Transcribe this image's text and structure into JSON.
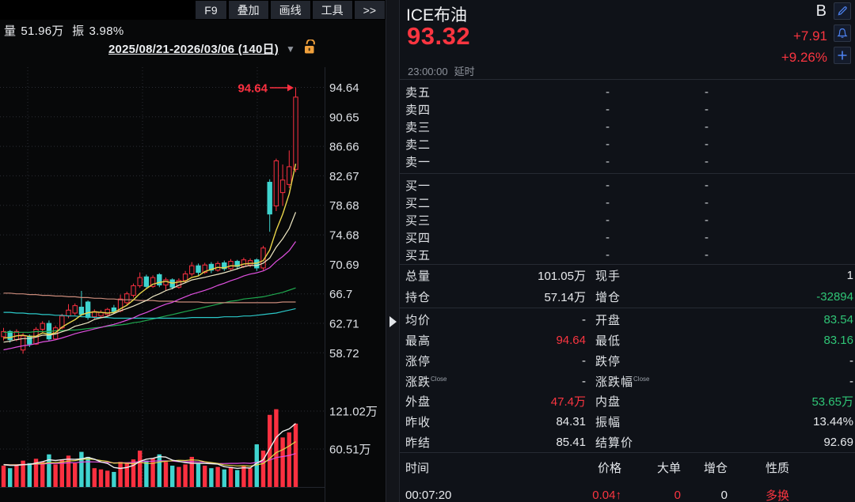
{
  "toolbar": {
    "items": [
      "F9",
      "叠加",
      "画线",
      "工具",
      ">>"
    ]
  },
  "chart_header": {
    "volume_label": "量",
    "volume_value": "51.96万",
    "amplitude_label": "振",
    "amplitude_value": "3.98%",
    "date_range": "2025/08/21-2026/03/06 (140日)",
    "caret": "▼"
  },
  "quote": {
    "name": "ICE布油",
    "code": "B",
    "price": "93.32",
    "change": "+7.91",
    "change_pct": "+9.26%",
    "time": "23:00:00",
    "delay_label": "延时"
  },
  "order_book": {
    "sell_rows": [
      {
        "label": "卖五",
        "v1": "-",
        "v2": "-"
      },
      {
        "label": "卖四",
        "v1": "-",
        "v2": "-"
      },
      {
        "label": "卖三",
        "v1": "-",
        "v2": "-"
      },
      {
        "label": "卖二",
        "v1": "-",
        "v2": "-"
      },
      {
        "label": "卖一",
        "v1": "-",
        "v2": "-"
      }
    ],
    "buy_rows": [
      {
        "label": "买一",
        "v1": "-",
        "v2": "-"
      },
      {
        "label": "买二",
        "v1": "-",
        "v2": "-"
      },
      {
        "label": "买三",
        "v1": "-",
        "v2": "-"
      },
      {
        "label": "买四",
        "v1": "-",
        "v2": "-"
      },
      {
        "label": "买五",
        "v1": "-",
        "v2": "-"
      }
    ]
  },
  "stats1": [
    {
      "l1": "总量",
      "v1": "101.05万",
      "c1": "w",
      "l2": "现手",
      "v2": "1",
      "c2": "w"
    },
    {
      "l1": "持仓",
      "v1": "57.14万",
      "c1": "w",
      "l2": "增仓",
      "v2": "-32894",
      "c2": "g"
    }
  ],
  "stats2": [
    {
      "l1": "均价",
      "v1": "-",
      "c1": "w",
      "l2": "开盘",
      "v2": "83.54",
      "c2": "g"
    },
    {
      "l1": "最高",
      "v1": "94.64",
      "c1": "r",
      "l2": "最低",
      "v2": "83.16",
      "c2": "g"
    },
    {
      "l1": "涨停",
      "v1": "-",
      "c1": "w",
      "l2": "跌停",
      "v2": "-",
      "c2": "w"
    },
    {
      "l1": "涨跌",
      "sup1": "Close",
      "v1": "-",
      "c1": "w",
      "l2": "涨跌幅",
      "sup2": "Close",
      "v2": "-",
      "c2": "w"
    },
    {
      "l1": "外盘",
      "v1": "47.4万",
      "c1": "r",
      "l2": "内盘",
      "v2": "53.65万",
      "c2": "g"
    },
    {
      "l1": "昨收",
      "v1": "84.31",
      "c1": "w",
      "l2": "振幅",
      "v2": "13.44%",
      "c2": "w"
    },
    {
      "l1": "昨结",
      "v1": "85.41",
      "c1": "w",
      "l2": "结算价",
      "v2": "92.69",
      "c2": "w"
    }
  ],
  "tape": {
    "headers": [
      "时间",
      "价格",
      "大单",
      "增仓",
      "性质"
    ],
    "rows": [
      {
        "time": "00:07:20",
        "price": "0.04",
        "arrow": "↑",
        "price_c": "r",
        "big": "0",
        "big_c": "r",
        "oi": "0",
        "oi_c": "w",
        "nature": "多换",
        "nature_c": "r"
      }
    ]
  },
  "colors": {
    "up_red": "#fb3040",
    "down_cyan": "#3fd4cf",
    "green_text": "#2fc576",
    "icon_blue": "#4d82f0",
    "lock_orange": "#f0a03c",
    "axis_text": "#dde0e5",
    "grid": "#2a2d34",
    "ma5": "#e9d54a",
    "ma10": "#efe8c4",
    "ma20": "#e050e0",
    "vol_ma5": "#ececec",
    "vol_ma10": "#e2d44b",
    "vol_ma20": "#e050e0"
  },
  "chart_data": {
    "type": "candlestick+volume",
    "annotation": {
      "text": "94.64"
    },
    "price_axis_labels": [
      "94.64",
      "90.65",
      "86.66",
      "82.67",
      "78.68",
      "74.68",
      "70.69",
      "66.7",
      "62.71",
      "58.72"
    ],
    "volume_axis_labels": [
      "121.02万",
      "60.51万"
    ],
    "volume_axis_values": [
      121.02,
      60.51
    ],
    "candles": [
      [
        60.9,
        62.1,
        60.4,
        61.6
      ],
      [
        61.6,
        61.8,
        60.1,
        60.5
      ],
      [
        60.5,
        61.9,
        60.3,
        61.6
      ],
      [
        59.1,
        61.4,
        58.6,
        61.0
      ],
      [
        61.0,
        61.2,
        59.5,
        59.9
      ],
      [
        59.9,
        62.2,
        59.8,
        61.9
      ],
      [
        61.9,
        63.0,
        61.5,
        62.7
      ],
      [
        62.7,
        63.1,
        60.3,
        60.6
      ],
      [
        60.6,
        62.4,
        60.5,
        62.1
      ],
      [
        62.1,
        64.0,
        61.9,
        63.7
      ],
      [
        63.7,
        65.3,
        63.4,
        64.5
      ],
      [
        64.1,
        65.4,
        63.8,
        65.1
      ],
      [
        64.9,
        67.1,
        63.7,
        63.9
      ],
      [
        65.6,
        65.8,
        63.2,
        63.5
      ],
      [
        63.6,
        64.6,
        63.3,
        64.3
      ],
      [
        63.7,
        64.5,
        63.4,
        64.2
      ],
      [
        63.9,
        64.8,
        63.7,
        64.6
      ],
      [
        64.8,
        65.2,
        64.0,
        64.3
      ],
      [
        64.4,
        66.6,
        64.2,
        66.0
      ],
      [
        65.5,
        67.0,
        65.2,
        66.7
      ],
      [
        66.5,
        68.1,
        66.2,
        67.8
      ],
      [
        67.8,
        69.6,
        67.5,
        68.9
      ],
      [
        69.0,
        69.3,
        67.4,
        67.7
      ],
      [
        67.7,
        69.2,
        67.5,
        68.9
      ],
      [
        69.3,
        69.5,
        67.6,
        67.9
      ],
      [
        67.9,
        68.9,
        67.2,
        68.6
      ],
      [
        68.6,
        68.8,
        67.3,
        67.6
      ],
      [
        67.6,
        68.8,
        67.4,
        68.5
      ],
      [
        68.5,
        69.8,
        68.2,
        69.4
      ],
      [
        69.4,
        71.0,
        69.1,
        70.5
      ],
      [
        70.5,
        70.8,
        69.2,
        69.6
      ],
      [
        69.6,
        70.9,
        69.4,
        70.6
      ],
      [
        70.7,
        71.0,
        69.5,
        69.9
      ],
      [
        69.9,
        71.1,
        69.7,
        70.8
      ],
      [
        70.9,
        71.2,
        69.8,
        70.1
      ],
      [
        70.1,
        71.4,
        69.9,
        71.1
      ],
      [
        71.1,
        71.3,
        70.0,
        70.4
      ],
      [
        70.4,
        71.6,
        70.2,
        71.3
      ],
      [
        70.6,
        71.5,
        70.3,
        71.2
      ],
      [
        71.3,
        71.5,
        69.8,
        70.2
      ],
      [
        70.2,
        73.2,
        69.9,
        72.9
      ],
      [
        81.8,
        82.2,
        75.1,
        77.5
      ],
      [
        78.6,
        85.0,
        77.9,
        84.7
      ],
      [
        80.4,
        84.2,
        78.6,
        82.1
      ],
      [
        81.5,
        86.1,
        81.0,
        83.9
      ],
      [
        83.54,
        94.64,
        83.16,
        93.32
      ]
    ],
    "volumes": [
      34,
      30,
      36,
      42,
      38,
      45,
      40,
      52,
      36,
      44,
      50,
      38,
      56,
      48,
      30,
      28,
      26,
      24,
      40,
      38,
      44,
      58,
      42,
      46,
      52,
      40,
      34,
      32,
      36,
      48,
      38,
      34,
      30,
      32,
      28,
      32,
      27,
      34,
      30,
      68,
      58,
      115,
      124,
      79,
      87,
      101
    ],
    "volume_color_override": {
      "41": "u"
    },
    "price_seed": [
      57.0,
      57.2,
      57.4,
      57.6,
      57.8,
      58.0,
      58.2,
      58.4,
      58.6,
      58.8,
      59.0,
      59.2,
      59.4,
      59.6,
      59.8,
      60.0,
      60.2,
      60.4,
      60.6,
      60.8
    ],
    "volume_seed": [
      36,
      36,
      36,
      36,
      36,
      36,
      36,
      36,
      36,
      36,
      36,
      36,
      36,
      36,
      36,
      36,
      36,
      36,
      36,
      36
    ],
    "extra_price_ma": [
      {
        "name": "ma-long-green",
        "color": "#1fa84f",
        "values": [
          61.5,
          61.5,
          61.5,
          61.5,
          61.5,
          61.6,
          61.6,
          61.6,
          61.7,
          61.7,
          61.8,
          61.8,
          61.9,
          62.0,
          62.1,
          62.2,
          62.3,
          62.4,
          62.5,
          62.6,
          62.8,
          62.9,
          63.1,
          63.3,
          63.5,
          63.7,
          63.9,
          64.1,
          64.3,
          64.5,
          64.7,
          64.9,
          65.1,
          65.3,
          65.5,
          65.7,
          65.8,
          66.0,
          66.1,
          66.2,
          66.3,
          66.5,
          66.7,
          66.9,
          67.2,
          67.5
        ]
      },
      {
        "name": "ma-long-cyan",
        "color": "#2bc8c8",
        "values": [
          64.2,
          64.2,
          64.1,
          64.1,
          64.0,
          64.0,
          63.9,
          63.9,
          63.8,
          63.8,
          63.7,
          63.7,
          63.6,
          63.6,
          63.5,
          63.5,
          63.5,
          63.4,
          63.4,
          63.4,
          63.4,
          63.4,
          63.4,
          63.4,
          63.4,
          63.4,
          63.4,
          63.4,
          63.4,
          63.5,
          63.5,
          63.5,
          63.5,
          63.5,
          63.6,
          63.6,
          63.6,
          63.7,
          63.7,
          63.8,
          63.9,
          64.0,
          64.1,
          64.3,
          64.5,
          64.7
        ]
      },
      {
        "name": "ma-long-salmon",
        "color": "#c98a7a",
        "values": [
          66.8,
          66.8,
          66.7,
          66.7,
          66.6,
          66.6,
          66.5,
          66.5,
          66.4,
          66.4,
          66.3,
          66.3,
          66.2,
          66.2,
          66.1,
          66.1,
          66.0,
          66.0,
          65.9,
          65.9,
          65.9,
          65.8,
          65.8,
          65.8,
          65.7,
          65.7,
          65.7,
          65.6,
          65.6,
          65.6,
          65.6,
          65.5,
          65.5,
          65.5,
          65.5,
          65.5,
          65.5,
          65.5,
          65.5,
          65.5,
          65.5,
          65.5,
          65.5,
          65.6,
          65.6,
          65.6
        ]
      }
    ]
  }
}
